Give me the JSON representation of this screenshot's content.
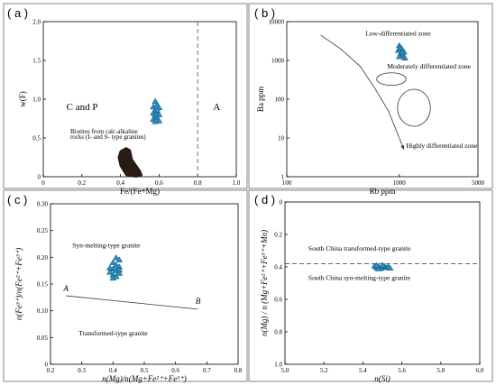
{
  "colors": {
    "marker": "#2a8fc0",
    "marker_edge": "#0c4f73",
    "blob": "#2b1a14",
    "frame": "#666666"
  },
  "chart_data": [
    {
      "id": "a",
      "panel_label": "( a )",
      "type": "scatter",
      "xlabel": "Fe/(Fe+Mg)",
      "ylabel": "w(F)",
      "xlim": [
        0,
        1.0
      ],
      "ylim": [
        0,
        2.0
      ],
      "xticks": [
        "0",
        "0.2",
        "0.4",
        "0.6",
        "0.8",
        "1.0"
      ],
      "yticks": [
        "0",
        "0.5",
        "1.0",
        "1.5",
        "2.0"
      ],
      "divider_x": 0.8,
      "region_labels": [
        "C and P",
        "A"
      ],
      "blob_label": [
        "Biotites from calc-alkaline",
        "rocks (I- and S- type granites)"
      ],
      "blob_polygon": [
        [
          0.4,
          0.33
        ],
        [
          0.43,
          0.37
        ],
        [
          0.45,
          0.34
        ],
        [
          0.46,
          0.22
        ],
        [
          0.5,
          0.08
        ],
        [
          0.51,
          0.02
        ],
        [
          0.48,
          0.0
        ],
        [
          0.43,
          0.02
        ],
        [
          0.4,
          0.14
        ],
        [
          0.39,
          0.25
        ]
      ],
      "points": [
        [
          0.58,
          0.97
        ],
        [
          0.59,
          0.93
        ],
        [
          0.57,
          0.9
        ],
        [
          0.6,
          0.89
        ],
        [
          0.58,
          0.86
        ],
        [
          0.59,
          0.84
        ],
        [
          0.57,
          0.82
        ],
        [
          0.6,
          0.8
        ],
        [
          0.58,
          0.78
        ],
        [
          0.59,
          0.76
        ],
        [
          0.57,
          0.74
        ],
        [
          0.6,
          0.72
        ],
        [
          0.58,
          0.71
        ],
        [
          0.59,
          0.86
        ],
        [
          0.58,
          0.8
        ]
      ]
    },
    {
      "id": "b",
      "panel_label": "( b )",
      "type": "scatter",
      "xscale": "log",
      "yscale": "log",
      "xlabel": "Rb ppm",
      "ylabel": "Ba ppm",
      "xlim": [
        100,
        5000
      ],
      "ylim": [
        1,
        10000
      ],
      "xticks": [
        {
          "v": 100,
          "label": "100"
        },
        {
          "v": 1000,
          "label": "1000"
        },
        {
          "v": 5000,
          "label": "5000"
        }
      ],
      "yticks": [
        {
          "v": 1,
          "label": "1"
        },
        {
          "v": 10,
          "label": "10"
        },
        {
          "v": 100,
          "label": "100"
        },
        {
          "v": 1000,
          "label": "1000"
        },
        {
          "v": 10000,
          "label": "10000"
        }
      ],
      "zones": [
        "Low-differentiated zone",
        "Moderately differentiated zone",
        "Highly differentiated zone"
      ],
      "trend_curve": [
        [
          200,
          4500
        ],
        [
          300,
          2000
        ],
        [
          450,
          700
        ],
        [
          600,
          200
        ],
        [
          800,
          50
        ],
        [
          1000,
          10
        ],
        [
          1100,
          5
        ]
      ],
      "ellipse_moderate": {
        "cx": 850,
        "cy": 330,
        "rx_factor": 1.35,
        "ry_factor": 1.45
      },
      "ellipse_high": {
        "cx": 1350,
        "cy": 60,
        "rx_factor": 1.4,
        "ry_factor": 3.0
      },
      "points": [
        [
          1000,
          2400
        ],
        [
          1050,
          2000
        ],
        [
          980,
          1800
        ],
        [
          1100,
          1650
        ],
        [
          1030,
          1500
        ],
        [
          1080,
          1350
        ],
        [
          1000,
          1250
        ],
        [
          1120,
          1150
        ],
        [
          1060,
          1600
        ],
        [
          1010,
          2100
        ]
      ]
    },
    {
      "id": "c",
      "panel_label": "( c )",
      "type": "scatter",
      "xlabel": "n(Mg)/n(Mg+Fe²⁺+Fe³⁺)",
      "ylabel": "n(Fe³⁺)/n(Fe²⁺+Fe³⁺)",
      "xlim": [
        0.2,
        0.8
      ],
      "ylim": [
        0,
        0.3
      ],
      "xticks": [
        "0.2",
        "0.3",
        "0.4",
        "0.5",
        "0.6",
        "0.7",
        "0.8"
      ],
      "yticks": [
        "0",
        "0.05",
        "0.10",
        "0.15",
        "0.20",
        "0.25",
        "0.30"
      ],
      "line_AB": [
        [
          0.25,
          0.128
        ],
        [
          0.67,
          0.103
        ]
      ],
      "line_labels": [
        "A",
        "B"
      ],
      "region_labels": [
        "Syn-melting-type granite",
        "Transformed-type granite"
      ],
      "points": [
        [
          0.41,
          0.199
        ],
        [
          0.42,
          0.195
        ],
        [
          0.4,
          0.19
        ],
        [
          0.41,
          0.185
        ],
        [
          0.42,
          0.182
        ],
        [
          0.4,
          0.178
        ],
        [
          0.41,
          0.175
        ],
        [
          0.39,
          0.172
        ],
        [
          0.42,
          0.17
        ],
        [
          0.4,
          0.167
        ],
        [
          0.41,
          0.164
        ],
        [
          0.4,
          0.161
        ],
        [
          0.42,
          0.176
        ],
        [
          0.39,
          0.18
        ]
      ]
    },
    {
      "id": "d",
      "panel_label": "( d )",
      "type": "scatter",
      "xlabel": "n(Si)",
      "ylabel": "n(Mg) / n (Mg+Fe²⁺+Fe³⁺+Mn)",
      "xlim": [
        5.0,
        6.0
      ],
      "ylim": [
        0,
        1.0
      ],
      "yinvert": true,
      "xticks": [
        "5.0",
        "5.2",
        "5.4",
        "5.6",
        "5.8",
        "6.0"
      ],
      "yticks": [
        "0",
        "0.2",
        "0.4",
        "0.6",
        "0.8",
        "1.0"
      ],
      "divider_y": 0.38,
      "region_labels": [
        "South China transformed-type granite",
        "South China syn-melting-type granite"
      ],
      "points": [
        [
          5.46,
          0.395
        ],
        [
          5.47,
          0.405
        ],
        [
          5.48,
          0.398
        ],
        [
          5.49,
          0.41
        ],
        [
          5.5,
          0.402
        ],
        [
          5.51,
          0.395
        ],
        [
          5.52,
          0.405
        ],
        [
          5.53,
          0.4
        ],
        [
          5.54,
          0.408
        ],
        [
          5.48,
          0.412
        ],
        [
          5.5,
          0.39
        ],
        [
          5.47,
          0.392
        ]
      ]
    }
  ]
}
